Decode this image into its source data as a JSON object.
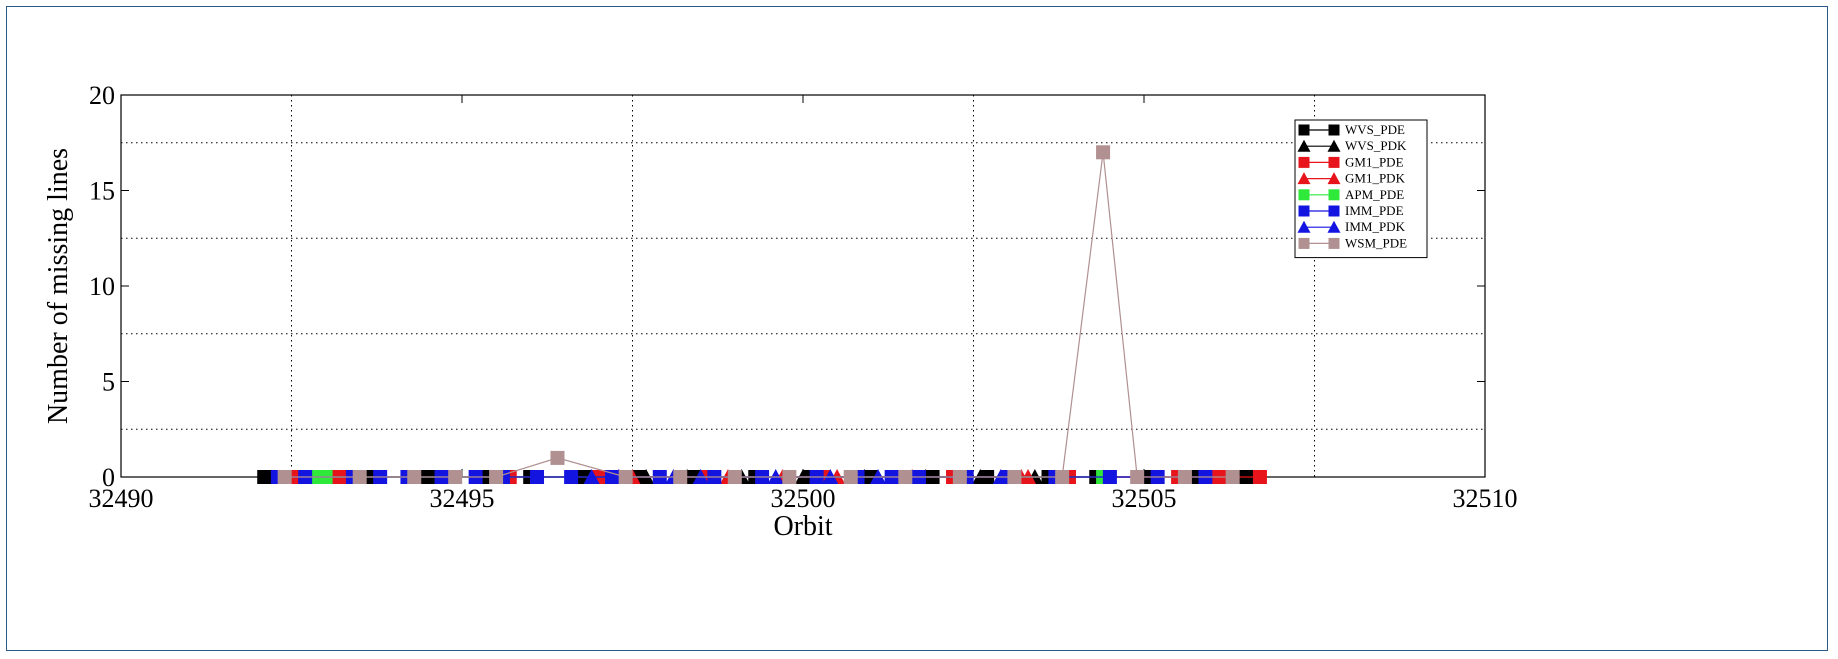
{
  "chart_data": {
    "type": "line",
    "xlabel": "Orbit",
    "ylabel": "Number of missing lines",
    "xlim": [
      32490,
      32510
    ],
    "ylim": [
      0,
      20
    ],
    "x_ticks": [
      32490,
      32495,
      32500,
      32505,
      32510
    ],
    "y_ticks": [
      0,
      5,
      10,
      15,
      20
    ],
    "grid": true,
    "grid_y": [
      2.5,
      7.5,
      12.5,
      17.5
    ],
    "grid_x": [
      32492.5,
      32497.5,
      32502.5,
      32507.5
    ],
    "legend_position": "top-right",
    "series": [
      {
        "name": "WVS_PDE",
        "color": "#000000",
        "marker": "square",
        "x": [
          32492.1,
          32492.9,
          32493.6,
          32494.5,
          32495.3,
          32496.0,
          32496.8,
          32497.6,
          32498.4,
          32499.3,
          32500.1,
          32501.0,
          32501.9,
          32502.7,
          32503.6,
          32504.3,
          32505.0,
          32505.8,
          32506.5
        ],
        "y": [
          0,
          0,
          0,
          0,
          0,
          0,
          0,
          0,
          0,
          0,
          0,
          0,
          0,
          0,
          0,
          0,
          0,
          0,
          0
        ]
      },
      {
        "name": "WVS_PDK",
        "color": "#000000",
        "marker": "triangle",
        "x": [
          32497.7,
          32498.3,
          32499.1,
          32500.0,
          32500.9,
          32501.8,
          32502.6,
          32503.4
        ],
        "y": [
          0,
          0,
          0,
          0,
          0,
          0,
          0,
          0
        ]
      },
      {
        "name": "GM1_PDE",
        "color": "#e8141b",
        "marker": "square",
        "x": [
          32492.5,
          32493.2,
          32494.8,
          32495.7,
          32497.0,
          32498.6,
          32500.3,
          32501.4,
          32502.2,
          32503.9,
          32505.5,
          32506.1,
          32506.7
        ],
        "y": [
          0,
          0,
          0,
          0,
          0,
          0,
          0,
          0,
          0,
          0,
          0,
          0,
          0
        ]
      },
      {
        "name": "GM1_PDK",
        "color": "#e8141b",
        "marker": "triangle",
        "x": [
          32497.3,
          32497.5,
          32498.9,
          32499.7,
          32500.5,
          32501.6,
          32503.2,
          32503.3
        ],
        "y": [
          0,
          0,
          0,
          0,
          0,
          0,
          0,
          0
        ]
      },
      {
        "name": "APM_PDE",
        "color": "#2ee83a",
        "marker": "square",
        "x": [
          32492.8,
          32493.0,
          32504.4
        ],
        "y": [
          0,
          0,
          0
        ]
      },
      {
        "name": "IMM_PDE",
        "color": "#1414e0",
        "marker": "square",
        "x": [
          32492.3,
          32492.7,
          32493.4,
          32493.8,
          32494.2,
          32494.7,
          32495.2,
          32495.6,
          32496.1,
          32496.6,
          32497.2,
          32497.9,
          32498.7,
          32499.4,
          32500.2,
          32500.8,
          32501.3,
          32501.7,
          32502.4,
          32503.0,
          32503.7,
          32504.5,
          32505.2,
          32505.9
        ],
        "y": [
          0,
          0,
          0,
          0,
          0,
          0,
          0,
          0,
          0,
          0,
          0,
          0,
          0,
          0,
          0,
          0,
          0,
          0,
          0,
          0,
          0,
          0,
          0,
          0
        ]
      },
      {
        "name": "IMM_PDK",
        "color": "#1414e0",
        "marker": "triangle",
        "x": [
          32496.9,
          32497.3,
          32498.1,
          32498.5,
          32499.6,
          32500.4,
          32501.1,
          32502.9
        ],
        "y": [
          0,
          0,
          0,
          0,
          0,
          0,
          0,
          0
        ]
      },
      {
        "name": "WSM_PDE",
        "color": "#b09090",
        "marker": "square",
        "x": [
          32492.4,
          32493.5,
          32494.3,
          32494.9,
          32495.5,
          32496.4,
          32497.4,
          32498.2,
          32499.0,
          32499.8,
          32500.7,
          32501.5,
          32502.3,
          32503.1,
          32503.8,
          32504.4,
          32504.9,
          32505.6,
          32506.3
        ],
        "y": [
          0,
          0,
          0,
          0,
          0,
          1,
          0,
          0,
          0,
          0,
          0,
          0,
          0,
          0,
          0,
          17,
          0,
          0,
          0
        ]
      }
    ]
  }
}
